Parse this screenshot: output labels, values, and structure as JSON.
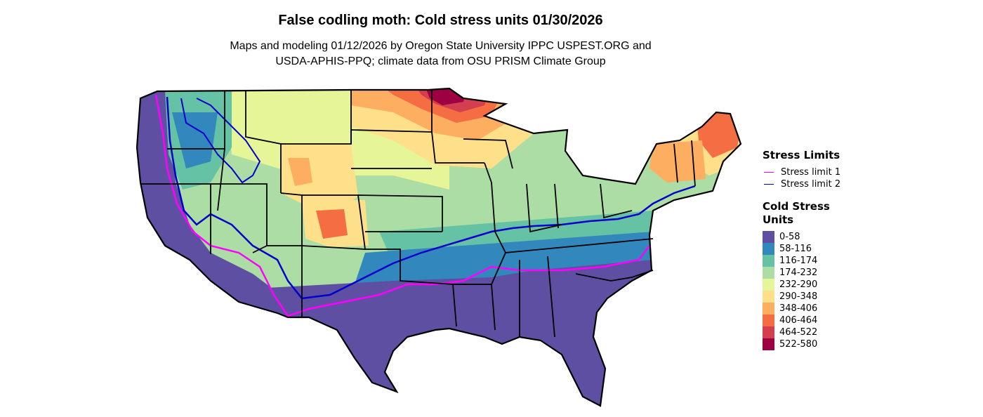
{
  "title": "False codling moth: Cold stress units 01/30/2026",
  "subtitle_line1": "Maps and modeling 01/12/2026 by Oregon State University IPPC USPEST.ORG and",
  "subtitle_line2": "USDA-APHIS-PPQ; climate data from OSU PRISM Climate Group",
  "legend": {
    "stress_title": "Stress Limits",
    "stress_lines": [
      {
        "label": "Stress limit 1",
        "color": "#ff00ff"
      },
      {
        "label": "Stress limit 2",
        "color": "#0000cc"
      }
    ],
    "csu_title_line1": "Cold Stress",
    "csu_title_line2": "Units",
    "bins": [
      {
        "label": "0-58",
        "color": "#5e4fa2"
      },
      {
        "label": "58-116",
        "color": "#3288bd"
      },
      {
        "label": "116-174",
        "color": "#66c2a5"
      },
      {
        "label": "174-232",
        "color": "#abdda4"
      },
      {
        "label": "232-290",
        "color": "#e6f598"
      },
      {
        "label": "290-348",
        "color": "#fee08b"
      },
      {
        "label": "348-406",
        "color": "#fdae61"
      },
      {
        "label": "406-464",
        "color": "#f46d43"
      },
      {
        "label": "464-522",
        "color": "#d53e4f"
      },
      {
        "label": "522-580",
        "color": "#9e0142"
      }
    ]
  }
}
